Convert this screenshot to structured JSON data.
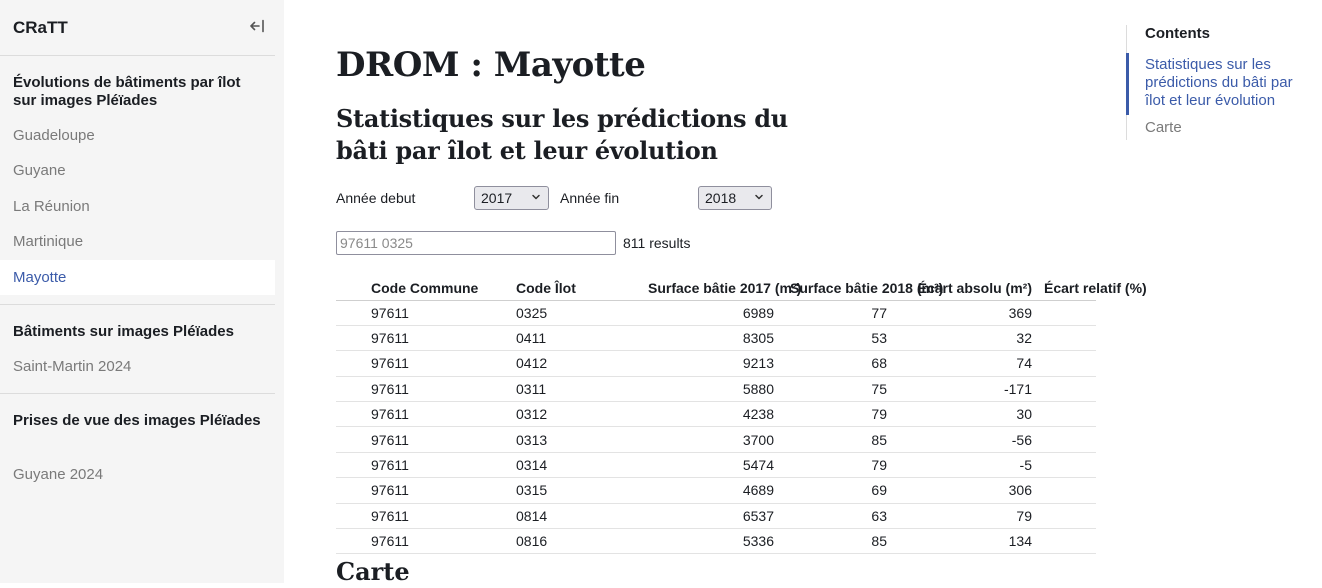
{
  "sidebar": {
    "brand": "CRaTT",
    "sections": [
      {
        "title": "Évolutions de bâtiments par îlot sur images Pléïades",
        "items": [
          "Guadeloupe",
          "Guyane",
          "La Réunion",
          "Martinique",
          "Mayotte"
        ]
      },
      {
        "title": "Bâtiments sur images Pléïades",
        "items": [
          "Saint-Martin 2024"
        ]
      },
      {
        "title": "Prises de vue des images Pléïades",
        "items": [
          "Guyane 2024"
        ]
      }
    ],
    "active_item": "Mayotte"
  },
  "main": {
    "title": "DROM : Mayotte",
    "subtitle": "Statistiques sur les prédictions du bâti par îlot et leur évolution",
    "filters": {
      "start_label": "Année debut",
      "start_value": "2017",
      "end_label": "Année fin",
      "end_value": "2018"
    },
    "search": {
      "placeholder": "97611 0325"
    },
    "results_text": "811 results",
    "table": {
      "headers": [
        "Code Commune",
        "Code Îlot",
        "Surface bâtie 2017 (m²)",
        "Surface bâtie 2018 (m²)",
        "Écart absolu (m²)",
        "Écart relatif (%)"
      ],
      "rows": [
        [
          "97611",
          "0325",
          "6989",
          "77",
          "369",
          ""
        ],
        [
          "97611",
          "0411",
          "8305",
          "53",
          "32",
          ""
        ],
        [
          "97611",
          "0412",
          "9213",
          "68",
          "74",
          ""
        ],
        [
          "97611",
          "0311",
          "5880",
          "75",
          "-171",
          ""
        ],
        [
          "97611",
          "0312",
          "4238",
          "79",
          "30",
          ""
        ],
        [
          "97611",
          "0313",
          "3700",
          "85",
          "-56",
          ""
        ],
        [
          "97611",
          "0314",
          "5474",
          "79",
          "-5",
          ""
        ],
        [
          "97611",
          "0315",
          "4689",
          "69",
          "306",
          ""
        ],
        [
          "97611",
          "0814",
          "6537",
          "63",
          "79",
          ""
        ],
        [
          "97611",
          "0816",
          "5336",
          "85",
          "134",
          ""
        ]
      ]
    },
    "section2_title": "Carte"
  },
  "toc": {
    "title": "Contents",
    "items": [
      "Statistiques sur les prédictions du bâti par îlot et leur évolution",
      "Carte"
    ]
  },
  "colors": {
    "accent": "#3b5ba9",
    "sidebar_bg": "#f5f5f5",
    "muted": "#7a7a7a"
  },
  "icons": {
    "collapse": "collapse-sidebar-icon",
    "select": "chevron-down-icon"
  }
}
